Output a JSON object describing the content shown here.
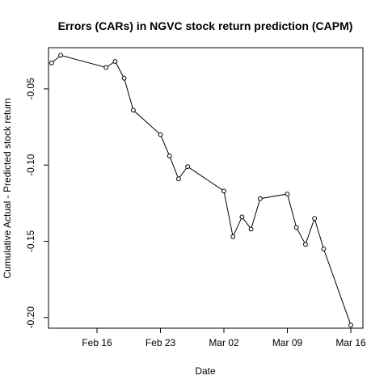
{
  "chart_data": {
    "type": "line",
    "title": "Errors (CARs) in NGVC stock return prediction (CAPM)",
    "xlabel": "Date",
    "ylabel": "Cumulative Actual - Predicted stock return",
    "x_tick_labels": [
      "Feb 16",
      "Feb 23",
      "Mar 02",
      "Mar 09",
      "Mar 16"
    ],
    "y_tick_labels": [
      "-0.20",
      "-0.15",
      "-0.10",
      "-0.05"
    ],
    "y_ticks": [
      -0.2,
      -0.15,
      -0.1,
      -0.05
    ],
    "ylim": [
      -0.207,
      -0.023
    ],
    "xlim": [
      "2015-02-10",
      "2015-03-17"
    ],
    "grid": false,
    "marker": "open-circle",
    "series": [
      {
        "points": [
          {
            "x": "2015-02-11",
            "y": -0.033
          },
          {
            "x": "2015-02-12",
            "y": -0.028
          },
          {
            "x": "2015-02-17",
            "y": -0.036
          },
          {
            "x": "2015-02-18",
            "y": -0.032
          },
          {
            "x": "2015-02-19",
            "y": -0.043
          },
          {
            "x": "2015-02-20",
            "y": -0.064
          },
          {
            "x": "2015-02-23",
            "y": -0.08
          },
          {
            "x": "2015-02-24",
            "y": -0.094
          },
          {
            "x": "2015-02-25",
            "y": -0.109
          },
          {
            "x": "2015-02-26",
            "y": -0.101
          },
          {
            "x": "2015-03-02",
            "y": -0.117
          },
          {
            "x": "2015-03-03",
            "y": -0.147
          },
          {
            "x": "2015-03-04",
            "y": -0.134
          },
          {
            "x": "2015-03-05",
            "y": -0.142
          },
          {
            "x": "2015-03-06",
            "y": -0.122
          },
          {
            "x": "2015-03-09",
            "y": -0.119
          },
          {
            "x": "2015-03-10",
            "y": -0.141
          },
          {
            "x": "2015-03-11",
            "y": -0.152
          },
          {
            "x": "2015-03-12",
            "y": -0.135
          },
          {
            "x": "2015-03-13",
            "y": -0.155
          },
          {
            "x": "2015-03-16",
            "y": -0.205
          }
        ]
      }
    ]
  }
}
